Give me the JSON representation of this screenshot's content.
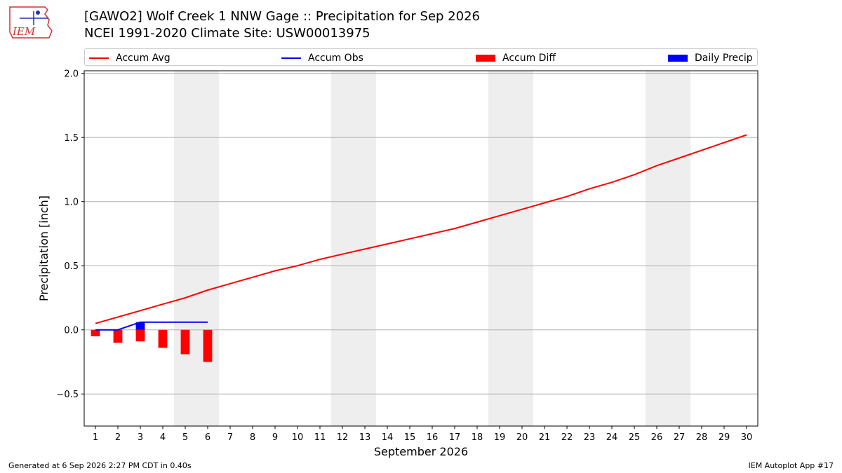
{
  "header": {
    "title_line1": "[GAWO2] Wolf Creek 1 NNW Gage :: Precipitation for Sep 2026",
    "title_line2": "NCEI 1991-2020 Climate Site: USW00013975",
    "logo_text": "IEM"
  },
  "legend": [
    {
      "label": "Accum Avg",
      "color": "#ff0000",
      "kind": "line"
    },
    {
      "label": "Accum Obs",
      "color": "#0000ff",
      "kind": "line"
    },
    {
      "label": "Accum Diff",
      "color": "#ff0000",
      "kind": "box"
    },
    {
      "label": "Daily Precip",
      "color": "#0000ff",
      "kind": "box"
    }
  ],
  "footer": {
    "left": "Generated at 6 Sep 2026 2:27 PM CDT in 0.40s",
    "right": "IEM Autoplot App #17"
  },
  "chart_data": {
    "type": "bar",
    "xlabel": "September 2026",
    "ylabel": "Precipitation [inch]",
    "xlim": [
      0.5,
      30.5
    ],
    "ylim": [
      -0.75,
      2.02
    ],
    "yticks": [
      -0.5,
      0.0,
      0.5,
      1.0,
      1.5,
      2.0
    ],
    "ytick_labels": [
      "−0.5",
      "0.0",
      "0.5",
      "1.0",
      "1.5",
      "2.0"
    ],
    "days": [
      1,
      2,
      3,
      4,
      5,
      6,
      7,
      8,
      9,
      10,
      11,
      12,
      13,
      14,
      15,
      16,
      17,
      18,
      19,
      20,
      21,
      22,
      23,
      24,
      25,
      26,
      27,
      28,
      29,
      30
    ],
    "weekend_days": [
      5,
      6,
      12,
      13,
      19,
      20,
      26,
      27
    ],
    "grid": "horizontal",
    "series": [
      {
        "name": "Accum Avg",
        "type": "line",
        "color": "#ff0000",
        "x": [
          1,
          2,
          3,
          4,
          5,
          6,
          7,
          8,
          9,
          10,
          11,
          12,
          13,
          14,
          15,
          16,
          17,
          18,
          19,
          20,
          21,
          22,
          23,
          24,
          25,
          26,
          27,
          28,
          29,
          30
        ],
        "values": [
          0.05,
          0.1,
          0.15,
          0.2,
          0.25,
          0.31,
          0.36,
          0.41,
          0.46,
          0.5,
          0.55,
          0.59,
          0.63,
          0.67,
          0.71,
          0.75,
          0.79,
          0.84,
          0.89,
          0.94,
          0.99,
          1.04,
          1.1,
          1.15,
          1.21,
          1.28,
          1.34,
          1.4,
          1.46,
          1.52
        ]
      },
      {
        "name": "Accum Obs",
        "type": "line",
        "color": "#0000ff",
        "x": [
          1,
          2,
          3,
          4,
          5,
          6
        ],
        "values": [
          0.0,
          0.0,
          0.06,
          0.06,
          0.06,
          0.06
        ]
      },
      {
        "name": "Accum Diff",
        "type": "bar",
        "color": "#ff0000",
        "x": [
          1,
          2,
          3,
          4,
          5,
          6
        ],
        "values": [
          -0.05,
          -0.1,
          -0.09,
          -0.14,
          -0.19,
          -0.25
        ]
      },
      {
        "name": "Daily Precip",
        "type": "bar",
        "color": "#0000ff",
        "x": [
          1,
          2,
          3,
          4,
          5,
          6
        ],
        "values": [
          0.0,
          0.0,
          0.06,
          0.0,
          0.0,
          0.0
        ]
      }
    ]
  }
}
